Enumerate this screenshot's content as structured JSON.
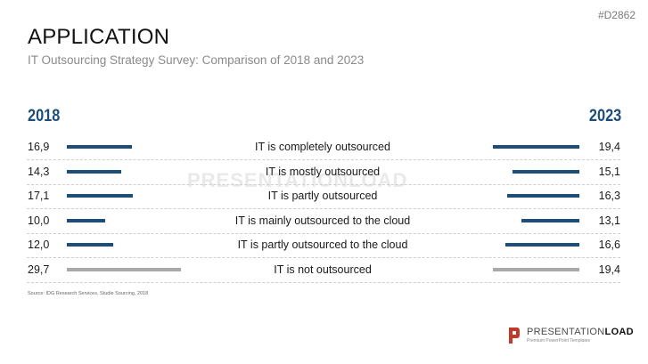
{
  "header": {
    "code": "#D2862",
    "title": "APPLICATION",
    "subtitle": "IT Outsourcing Strategy Survey: Comparison of 2018 and 2023"
  },
  "chart_data": {
    "type": "bar",
    "layout": "mirrored-horizontal",
    "categories": [
      "IT is completely outsourced",
      "IT is mostly outsourced",
      "IT is partly outsourced",
      "IT is mainly outsourced to the cloud",
      "IT is partly outsourced to the cloud",
      "IT is not outsourced"
    ],
    "series": [
      {
        "name": "2018",
        "side": "left",
        "values": [
          16.9,
          14.3,
          17.1,
          10.0,
          12.0,
          29.7
        ],
        "labels": [
          "16,9",
          "14,3",
          "17,1",
          "10,0",
          "12,0",
          "29,7"
        ]
      },
      {
        "name": "2023",
        "side": "right",
        "values": [
          19.4,
          15.1,
          16.3,
          13.1,
          16.6,
          19.4
        ],
        "labels": [
          "19,4",
          "15,1",
          "16,3",
          "13,1",
          "16,6",
          "19,4"
        ]
      }
    ],
    "colors": {
      "default": "#1d4e79",
      "highlight": "#a9a9a9"
    },
    "highlight_category": "IT is not outsourced",
    "grid": false,
    "source": "Source: IDG Research Services, Studie Sourcing, 2018"
  },
  "watermark": "PRESENTATIONLOAD",
  "logo": {
    "brand_light": "PRESENTATION",
    "brand_bold": "LOAD",
    "tagline": "Premium PowerPoint Templates",
    "color": "#c0392b"
  }
}
